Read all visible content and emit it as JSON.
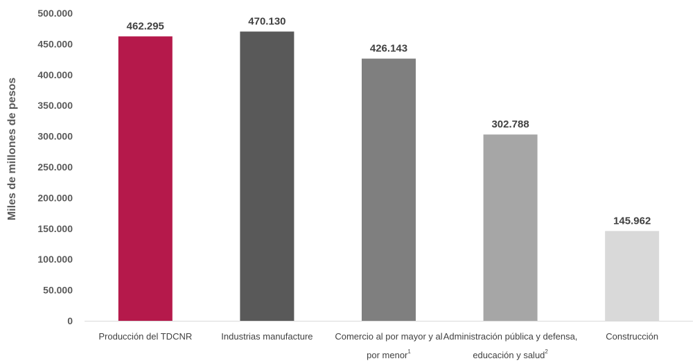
{
  "chart_data": {
    "type": "bar",
    "title": "",
    "xlabel": "",
    "ylabel": "Miles de millones de pesos",
    "ylim": [
      0,
      500000
    ],
    "y_ticks": [
      "0",
      "50.000",
      "100.000",
      "150.000",
      "200.000",
      "250.000",
      "300.000",
      "350.000",
      "400.000",
      "450.000",
      "500.000"
    ],
    "grid": false,
    "categories": [
      {
        "lines": [
          "Producción del TDCNR"
        ],
        "sup": ""
      },
      {
        "lines": [
          "Industrias manufacture"
        ],
        "sup": ""
      },
      {
        "lines": [
          "Comercio al por mayor y al",
          "por menor"
        ],
        "sup": "1"
      },
      {
        "lines": [
          "Administración pública y defensa,",
          "educación y salud"
        ],
        "sup": "2"
      },
      {
        "lines": [
          "Construcción"
        ],
        "sup": ""
      }
    ],
    "values": [
      462295,
      470130,
      426143,
      302788,
      145962
    ],
    "value_labels": [
      "462.295",
      "470.130",
      "426.143",
      "302.788",
      "145.962"
    ],
    "colors": [
      "#B5194B",
      "#595959",
      "#7F7F7F",
      "#A6A6A6",
      "#D9D9D9"
    ]
  }
}
